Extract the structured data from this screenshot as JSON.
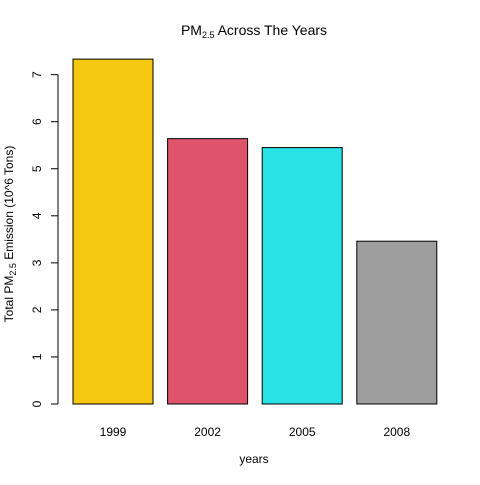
{
  "chart_data": {
    "type": "bar",
    "title": {
      "prefix": "PM",
      "subscript": "2.5",
      "suffix": " Across The Years"
    },
    "xlabel": "years",
    "ylabel": {
      "prefix": "Total PM",
      "subscript": "2.5",
      "suffix": " Emission (10^6 Tons)"
    },
    "categories": [
      "1999",
      "2002",
      "2005",
      "2008"
    ],
    "values": [
      7.33,
      5.64,
      5.45,
      3.46
    ],
    "colors": [
      "#F5C710",
      "#DF536B",
      "#28E2E5",
      "#9E9E9E"
    ],
    "ylim": [
      0,
      7.5
    ],
    "yticks": [
      0,
      1,
      2,
      3,
      4,
      5,
      6,
      7
    ],
    "grid": false,
    "legend": "none"
  }
}
